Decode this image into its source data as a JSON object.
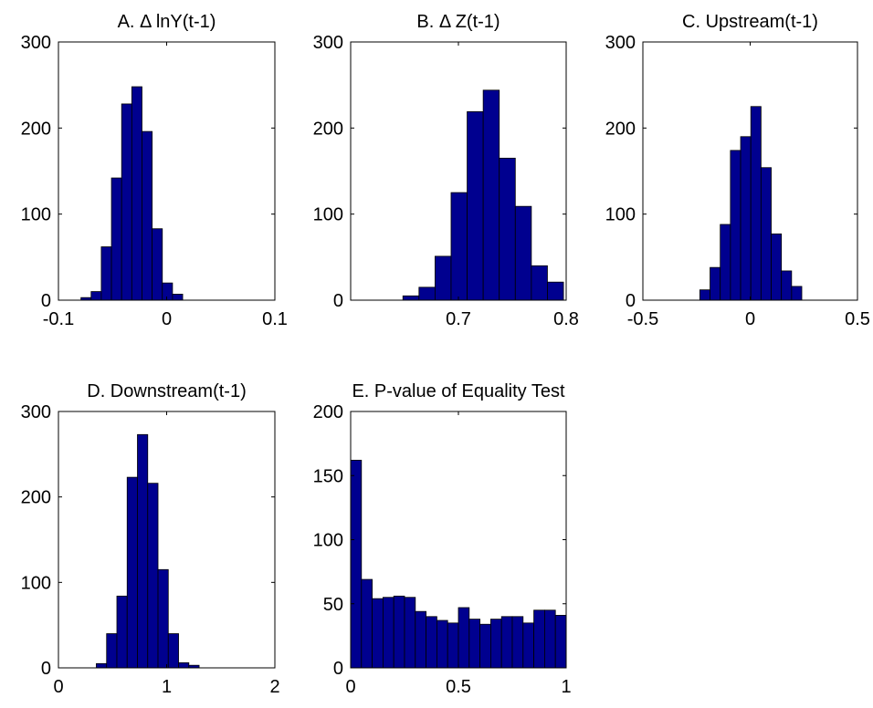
{
  "figure": {
    "bar_fill": "#00008F",
    "bar_stroke": "#000000",
    "axes_color": "#000000",
    "background": "#FFFFFF"
  },
  "chart_data": [
    {
      "type": "bar",
      "title": "A. Δ lnY(t-1)",
      "xlabel": "",
      "ylabel": "",
      "xlim": [
        -0.1,
        0.1
      ],
      "ylim": [
        0,
        300
      ],
      "xticks": [
        -0.1,
        0,
        0.1
      ],
      "xtick_labels": [
        "-0.1",
        "0",
        "0.1"
      ],
      "yticks": [
        0,
        100,
        200,
        300
      ],
      "ytick_labels": [
        "0",
        "100",
        "200",
        "300"
      ],
      "bin_edges": [
        -0.0792,
        -0.0698,
        -0.0604,
        -0.051,
        -0.0416,
        -0.0322,
        -0.0228,
        -0.0134,
        -0.004,
        0.0054,
        0.0148
      ],
      "values": [
        3,
        10,
        62,
        142,
        228,
        248,
        196,
        83,
        20,
        7
      ],
      "grid": false,
      "legend": "none"
    },
    {
      "type": "bar",
      "title": "B. Δ Z(t-1)",
      "xlabel": "",
      "ylabel": "",
      "xlim": [
        0.6,
        0.8
      ],
      "ylim": [
        0,
        300
      ],
      "xticks": [
        0.7,
        0.8
      ],
      "xtick_labels": [
        "0.7",
        "0.8"
      ],
      "yticks": [
        0,
        100,
        200,
        300
      ],
      "ytick_labels": [
        "0",
        "100",
        "200",
        "300"
      ],
      "bin_edges": [
        0.6485,
        0.6634,
        0.6783,
        0.6932,
        0.7081,
        0.723,
        0.7379,
        0.7528,
        0.7677,
        0.7826,
        0.7975
      ],
      "values": [
        5,
        15,
        51,
        125,
        219,
        244,
        165,
        109,
        40,
        21
      ],
      "grid": false,
      "legend": "none"
    },
    {
      "type": "bar",
      "title": "C. Upstream(t-1)",
      "xlabel": "",
      "ylabel": "",
      "xlim": [
        -0.5,
        0.5
      ],
      "ylim": [
        0,
        300
      ],
      "xticks": [
        -0.5,
        0,
        0.5
      ],
      "xtick_labels": [
        "-0.5",
        "0",
        "0.5"
      ],
      "yticks": [
        0,
        100,
        200,
        300
      ],
      "ytick_labels": [
        "0",
        "100",
        "200",
        "300"
      ],
      "bin_edges": [
        -0.2345,
        -0.187,
        -0.1395,
        -0.092,
        -0.0445,
        0.003,
        0.0505,
        0.098,
        0.1455,
        0.193,
        0.2405
      ],
      "values": [
        12,
        38,
        88,
        174,
        190,
        225,
        154,
        77,
        34,
        16
      ],
      "grid": false,
      "legend": "none"
    },
    {
      "type": "bar",
      "title": "D. Downstream(t-1)",
      "xlabel": "",
      "ylabel": "",
      "xlim": [
        0,
        2
      ],
      "ylim": [
        0,
        300
      ],
      "xticks": [
        0,
        1,
        2
      ],
      "xtick_labels": [
        "0",
        "1",
        "2"
      ],
      "yticks": [
        0,
        100,
        200,
        300
      ],
      "ytick_labels": [
        "0",
        "100",
        "200",
        "300"
      ],
      "bin_edges": [
        0.35,
        0.445,
        0.54,
        0.635,
        0.73,
        0.825,
        0.92,
        1.015,
        1.11,
        1.205,
        1.3
      ],
      "values": [
        5,
        40,
        84,
        223,
        273,
        216,
        115,
        40,
        6,
        3
      ],
      "grid": false,
      "legend": "none"
    },
    {
      "type": "bar",
      "title": "E. P-value of Equality Test",
      "xlabel": "",
      "ylabel": "",
      "xlim": [
        0,
        1
      ],
      "ylim": [
        0,
        200
      ],
      "xticks": [
        0,
        0.5,
        1
      ],
      "xtick_labels": [
        "0",
        "0.5",
        "1"
      ],
      "yticks": [
        0,
        50,
        100,
        150,
        200
      ],
      "ytick_labels": [
        "0",
        "50",
        "100",
        "150",
        "200"
      ],
      "bin_edges": [
        0,
        0.05,
        0.1,
        0.15,
        0.2,
        0.25,
        0.3,
        0.35,
        0.4,
        0.45,
        0.5,
        0.55,
        0.6,
        0.65,
        0.7,
        0.75,
        0.8,
        0.85,
        0.9,
        0.95,
        1
      ],
      "values": [
        162,
        69,
        54,
        55,
        56,
        55,
        44,
        40,
        37,
        35,
        47,
        38,
        34,
        38,
        40,
        40,
        35,
        45,
        45,
        41
      ],
      "grid": false,
      "legend": "none"
    }
  ]
}
